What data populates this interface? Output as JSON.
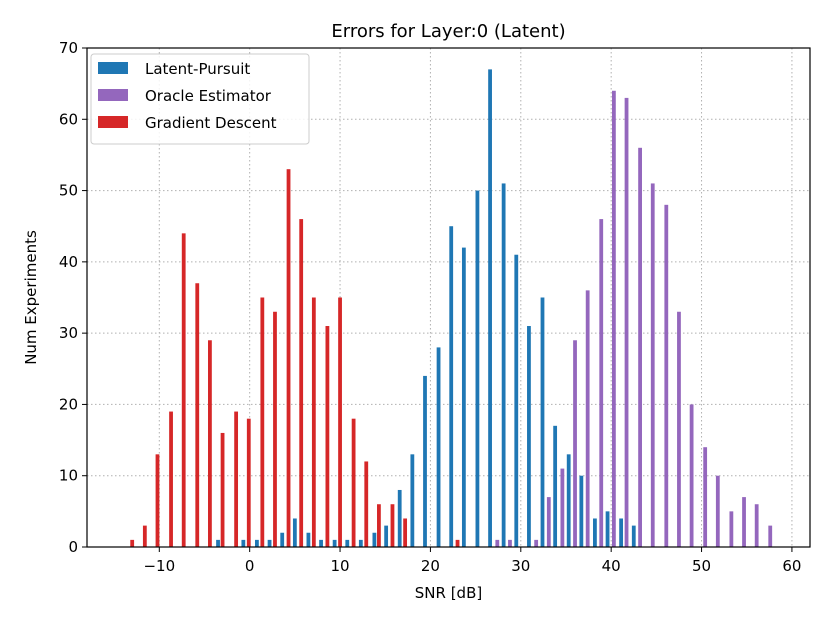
{
  "chart_data": {
    "type": "bar",
    "title": "Errors for Layer:0 (Latent)",
    "xlabel": "SNR [dB]",
    "ylabel": "Num Experiments",
    "xlim": [
      -18,
      62
    ],
    "ylim": [
      0,
      70
    ],
    "xticks": [
      -10,
      0,
      10,
      20,
      30,
      40,
      50,
      60
    ],
    "xtick_labels": [
      "−10",
      "0",
      "10",
      "20",
      "30",
      "40",
      "50",
      "60"
    ],
    "yticks": [
      0,
      10,
      20,
      30,
      40,
      50,
      60,
      70
    ],
    "grid": true,
    "legend_position": "top-left",
    "bar_width": 0.42,
    "series": [
      {
        "name": "Latent-Pursuit",
        "color": "#1f77b4",
        "x": [
          -3.5,
          -0.7,
          0.8,
          2.2,
          3.6,
          5.0,
          6.5,
          7.9,
          9.4,
          10.8,
          12.3,
          13.8,
          15.1,
          16.6,
          18.0,
          19.4,
          20.9,
          22.3,
          23.7,
          25.2,
          26.6,
          28.1,
          29.5,
          30.9,
          32.4,
          33.8,
          35.3,
          36.7,
          38.2,
          39.6,
          41.1,
          42.5
        ],
        "values": [
          1,
          1,
          1,
          1,
          2,
          4,
          2,
          1,
          1,
          1,
          1,
          2,
          3,
          8,
          13,
          24,
          28,
          45,
          42,
          50,
          67,
          51,
          41,
          31,
          35,
          17,
          13,
          10,
          4,
          5,
          4,
          3
        ]
      },
      {
        "name": "Oracle Estimator",
        "color": "#9467bd",
        "x": [
          27.4,
          28.8,
          31.7,
          33.1,
          34.6,
          36.0,
          37.4,
          38.9,
          40.3,
          41.7,
          43.2,
          44.6,
          46.1,
          47.5,
          48.9,
          50.4,
          51.8,
          53.3,
          54.7,
          56.1,
          57.6
        ],
        "values": [
          1,
          1,
          1,
          7,
          11,
          29,
          36,
          46,
          64,
          63,
          56,
          51,
          48,
          33,
          20,
          14,
          10,
          5,
          7,
          6,
          3
        ]
      },
      {
        "name": "Gradient Descent",
        "color": "#d62728",
        "x": [
          -13.0,
          -11.6,
          -10.2,
          -8.7,
          -7.3,
          -5.8,
          -4.4,
          -3.0,
          -1.5,
          -0.1,
          1.4,
          2.8,
          4.3,
          5.7,
          7.1,
          8.6,
          10.0,
          11.5,
          12.9,
          14.3,
          15.8,
          17.2,
          23.0
        ],
        "values": [
          1,
          3,
          13,
          19,
          44,
          37,
          29,
          16,
          19,
          18,
          35,
          33,
          53,
          46,
          35,
          31,
          35,
          18,
          12,
          6,
          6,
          4,
          1
        ]
      }
    ]
  }
}
